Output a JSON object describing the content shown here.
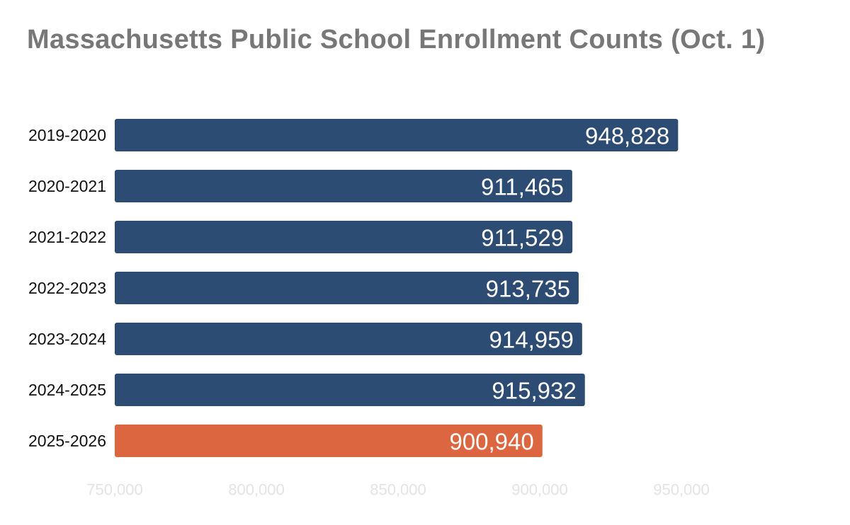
{
  "chart_data": {
    "type": "bar",
    "orientation": "horizontal",
    "title": "Massachusetts Public School Enrollment Counts (Oct. 1)",
    "categories": [
      "2019-2020",
      "2020-2021",
      "2021-2022",
      "2022-2023",
      "2023-2024",
      "2024-2025",
      "2025-2026"
    ],
    "values": [
      948828,
      911465,
      911529,
      913735,
      914959,
      915932,
      900940
    ],
    "value_labels": [
      "948,828",
      "911,465",
      "911,529",
      "913,735",
      "914,959",
      "915,932",
      "900,940"
    ],
    "xlim": [
      750000,
      960000
    ],
    "xticks": [
      750000,
      800000,
      850000,
      900000,
      950000
    ],
    "xtick_labels": [
      "750,000",
      "800,000",
      "850,000",
      "900,000",
      "950,000"
    ],
    "grid": false,
    "colors": {
      "default_bar": "#2c4c74",
      "highlight_bar": "#dc6640",
      "highlight_category": "2025-2026",
      "title": "#777777",
      "tick_label": "#e3e3e3"
    }
  }
}
